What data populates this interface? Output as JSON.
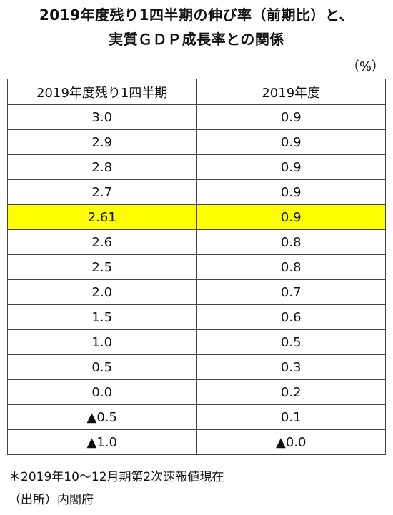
{
  "title": {
    "line1": "2019年度残り1四半期の伸び率（前期比）と、",
    "line2": "実質ＧＤＰ成長率との関係"
  },
  "unit": "（%）",
  "chart_data": {
    "type": "table",
    "columns": [
      "2019年度残り1四半期",
      "2019年度"
    ],
    "rows": [
      [
        "3.0",
        "0.9"
      ],
      [
        "2.9",
        "0.9"
      ],
      [
        "2.8",
        "0.9"
      ],
      [
        "2.7",
        "0.9"
      ],
      [
        "2.61",
        "0.9"
      ],
      [
        "2.6",
        "0.8"
      ],
      [
        "2.5",
        "0.8"
      ],
      [
        "2.0",
        "0.7"
      ],
      [
        "1.5",
        "0.6"
      ],
      [
        "1.0",
        "0.5"
      ],
      [
        "0.5",
        "0.3"
      ],
      [
        "0.0",
        "0.2"
      ],
      [
        "▲0.5",
        "0.1"
      ],
      [
        "▲1.0",
        "▲0.0"
      ]
    ],
    "highlight_row_index": 4,
    "highlight_color": "#ffff00"
  },
  "notes": {
    "basis": "＊2019年10～12月期第2次速報値現在",
    "source": "（出所）内閣府"
  }
}
